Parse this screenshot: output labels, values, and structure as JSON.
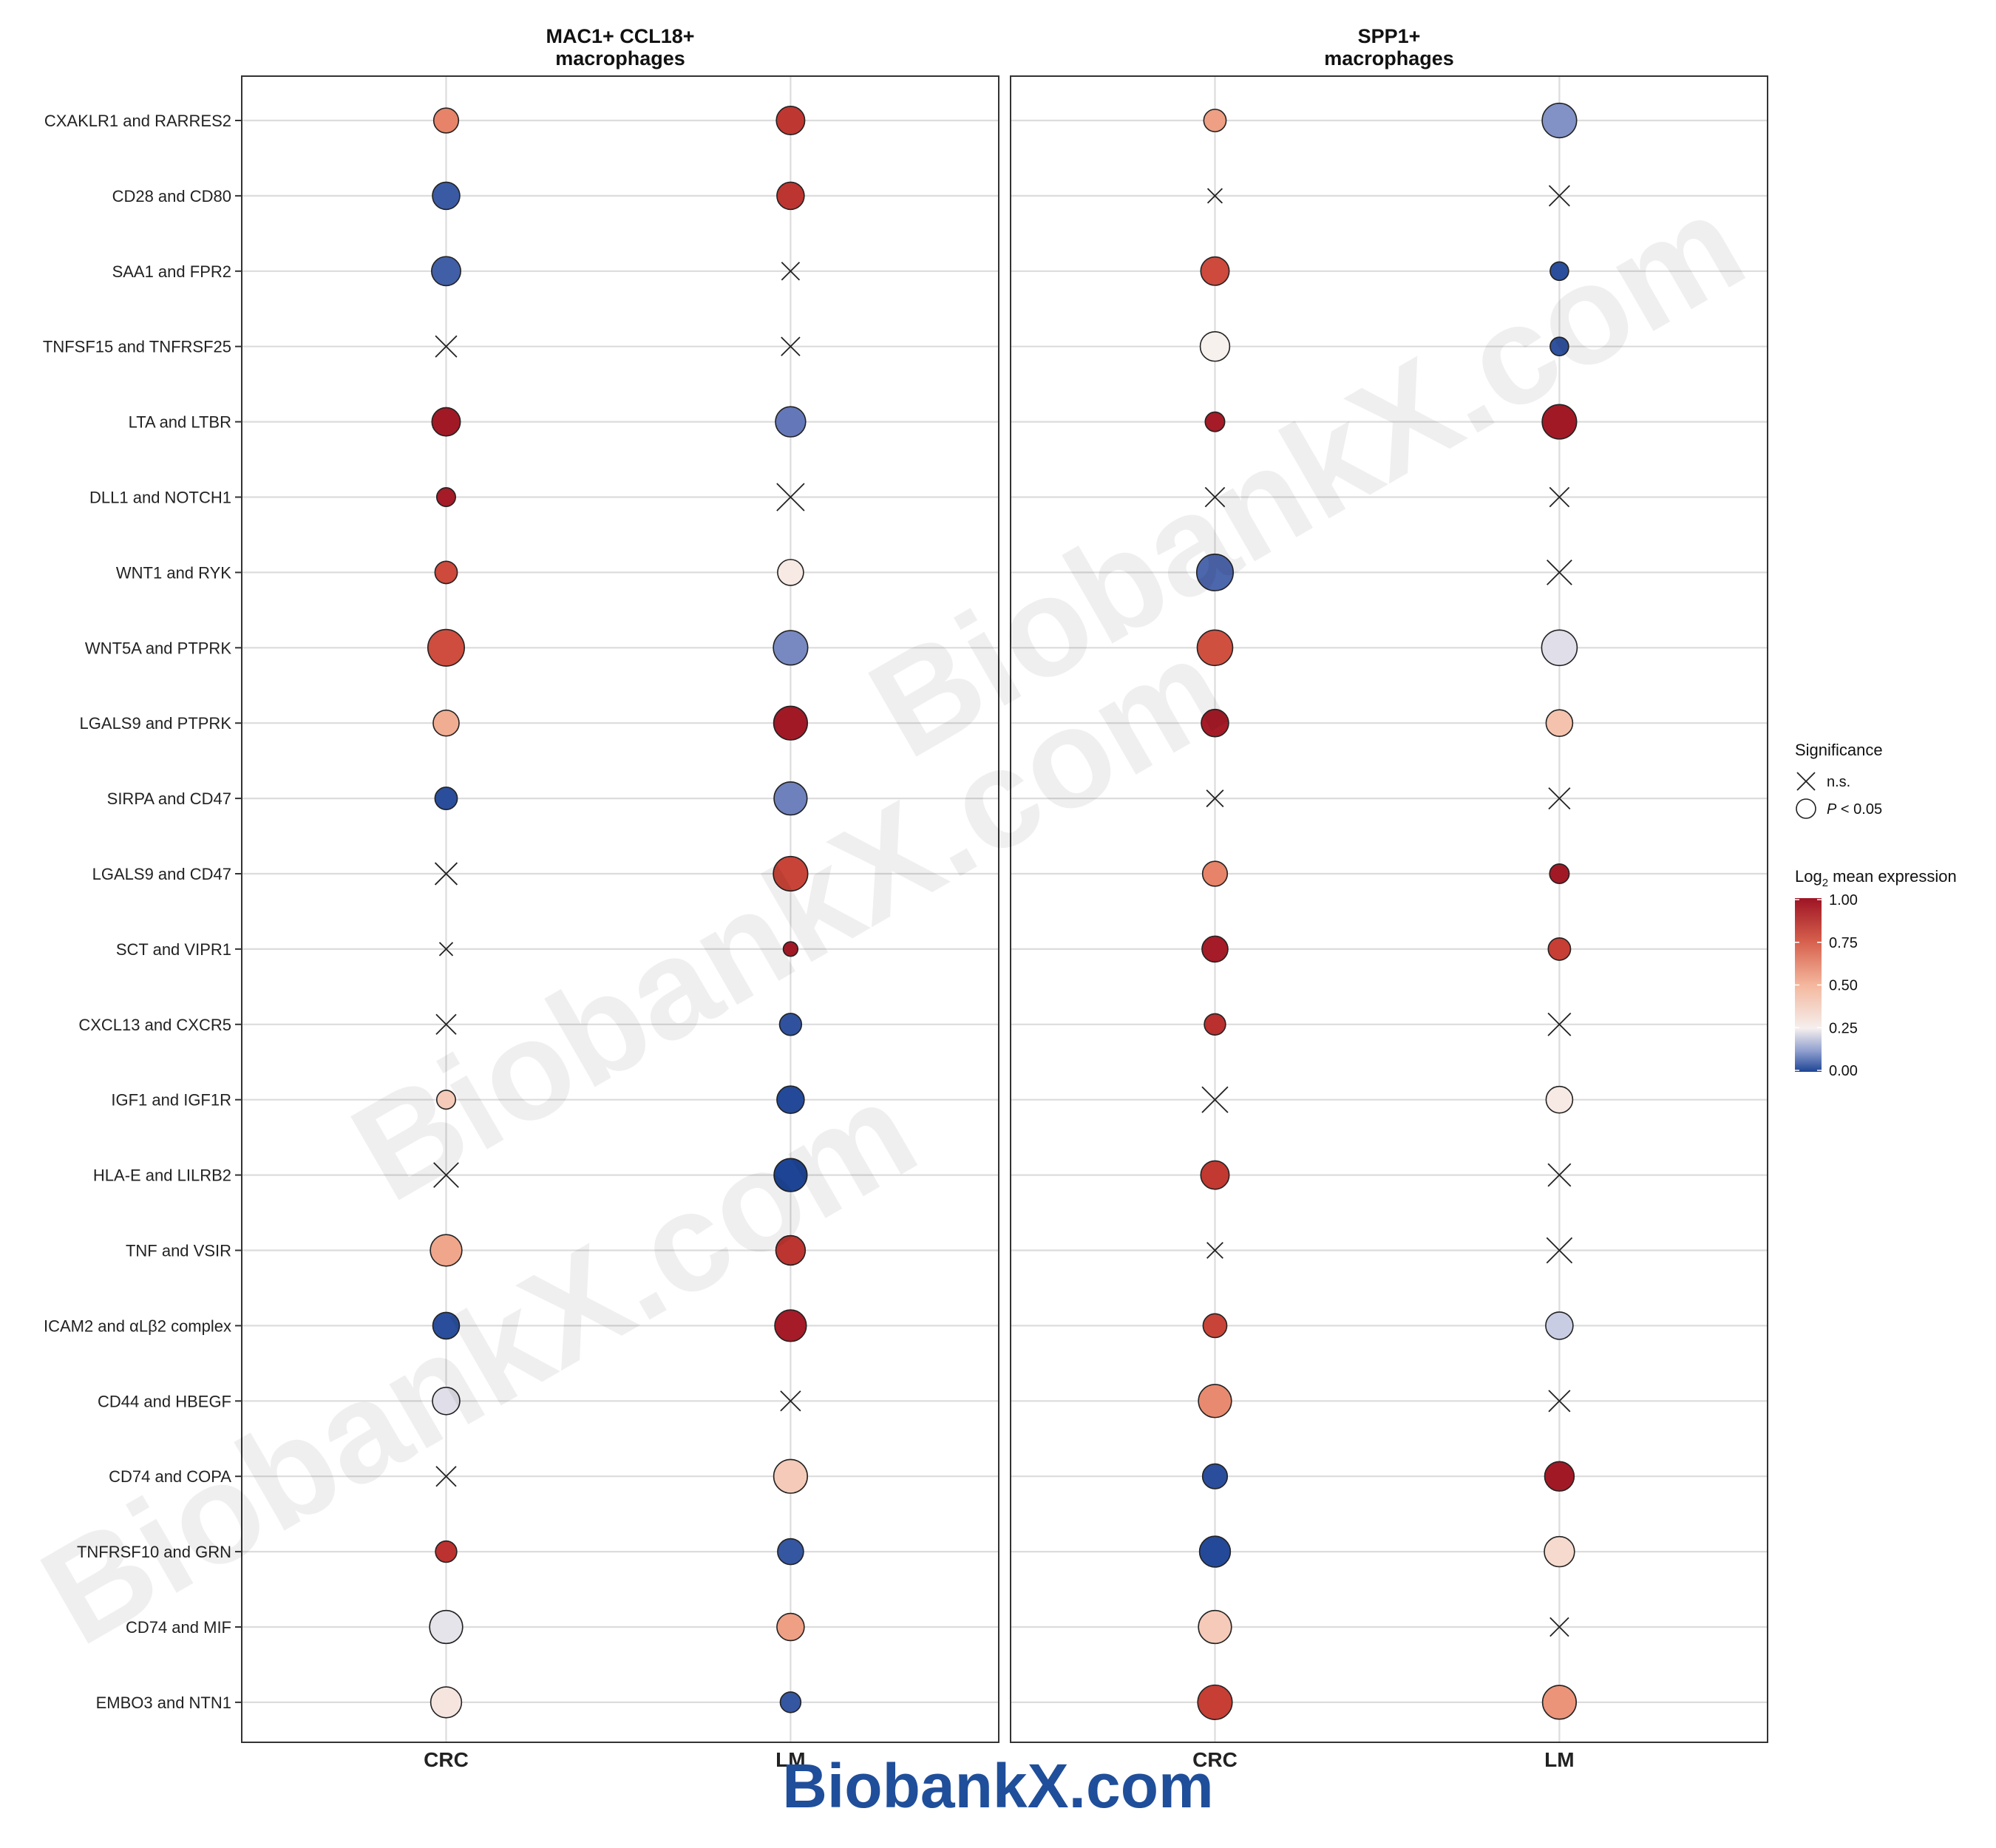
{
  "chart_data": {
    "type": "dotplot",
    "panels": [
      {
        "title_line1": "MAC1+ CCL18+",
        "title_line2": "macrophages"
      },
      {
        "title_line1": "SPP1+",
        "title_line2": "macrophages"
      }
    ],
    "x_categories": [
      "CRC",
      "LM"
    ],
    "rows": [
      "CXAKLR1 and RARRES2",
      "CD28 and CD80",
      "SAA1 and FPR2",
      "TNFSF15 and TNFRSF25",
      "LTA and LTBR",
      "DLL1 and NOTCH1",
      "WNT1 and RYK",
      "WNT5A and PTPRK",
      "LGALS9 and PTPRK",
      "SIRPA and CD47",
      "LGALS9 and CD47",
      "SCT and VIPR1",
      "CXCL13 and CXCR5",
      "IGF1 and IGF1R",
      "HLA-E and LILRB2",
      "TNF and VSIR",
      "ICAM2 and αLβ2 complex",
      "CD44 and HBEGF",
      "CD74 and COPA",
      "TNFRSF10 and GRN",
      "CD74 and MIF",
      "EMBO3 and NTN1"
    ],
    "size_scale_note": "relative marker size 0-1",
    "points": [
      {
        "panel": 0,
        "row": 0,
        "x": "CRC",
        "value": 0.6,
        "size": 0.45,
        "sig": true
      },
      {
        "panel": 0,
        "row": 0,
        "x": "LM",
        "value": 0.85,
        "size": 0.55,
        "sig": true
      },
      {
        "panel": 0,
        "row": 1,
        "x": "CRC",
        "value": 0.05,
        "size": 0.52,
        "sig": true
      },
      {
        "panel": 0,
        "row": 1,
        "x": "LM",
        "value": 0.86,
        "size": 0.52,
        "sig": true
      },
      {
        "panel": 0,
        "row": 2,
        "x": "CRC",
        "value": 0.06,
        "size": 0.57,
        "sig": true
      },
      {
        "panel": 0,
        "row": 2,
        "x": "LM",
        "value": null,
        "size": 0.42,
        "sig": false
      },
      {
        "panel": 0,
        "row": 3,
        "x": "CRC",
        "value": null,
        "size": 0.55,
        "sig": false
      },
      {
        "panel": 0,
        "row": 3,
        "x": "LM",
        "value": null,
        "size": 0.45,
        "sig": false
      },
      {
        "panel": 0,
        "row": 4,
        "x": "CRC",
        "value": 0.98,
        "size": 0.55,
        "sig": true
      },
      {
        "panel": 0,
        "row": 4,
        "x": "LM",
        "value": 0.12,
        "size": 0.6,
        "sig": true
      },
      {
        "panel": 0,
        "row": 5,
        "x": "CRC",
        "value": 0.97,
        "size": 0.28,
        "sig": true
      },
      {
        "panel": 0,
        "row": 5,
        "x": "LM",
        "value": null,
        "size": 0.78,
        "sig": false
      },
      {
        "panel": 0,
        "row": 6,
        "x": "CRC",
        "value": 0.78,
        "size": 0.38,
        "sig": true
      },
      {
        "panel": 0,
        "row": 6,
        "x": "LM",
        "value": 0.32,
        "size": 0.48,
        "sig": true
      },
      {
        "panel": 0,
        "row": 7,
        "x": "CRC",
        "value": 0.77,
        "size": 0.78,
        "sig": true
      },
      {
        "panel": 0,
        "row": 7,
        "x": "LM",
        "value": 0.14,
        "size": 0.72,
        "sig": true
      },
      {
        "panel": 0,
        "row": 8,
        "x": "CRC",
        "value": 0.48,
        "size": 0.48,
        "sig": true
      },
      {
        "panel": 0,
        "row": 8,
        "x": "LM",
        "value": 0.98,
        "size": 0.7,
        "sig": true
      },
      {
        "panel": 0,
        "row": 9,
        "x": "CRC",
        "value": 0.02,
        "size": 0.38,
        "sig": true
      },
      {
        "panel": 0,
        "row": 9,
        "x": "LM",
        "value": 0.13,
        "size": 0.68,
        "sig": true
      },
      {
        "panel": 0,
        "row": 10,
        "x": "CRC",
        "value": null,
        "size": 0.58,
        "sig": false
      },
      {
        "panel": 0,
        "row": 10,
        "x": "LM",
        "value": 0.8,
        "size": 0.72,
        "sig": true
      },
      {
        "panel": 0,
        "row": 11,
        "x": "CRC",
        "value": null,
        "size": 0.25,
        "sig": false
      },
      {
        "panel": 0,
        "row": 11,
        "x": "LM",
        "value": 0.98,
        "size": 0.16,
        "sig": true
      },
      {
        "panel": 0,
        "row": 12,
        "x": "CRC",
        "value": null,
        "size": 0.5,
        "sig": false
      },
      {
        "panel": 0,
        "row": 12,
        "x": "LM",
        "value": 0.03,
        "size": 0.37,
        "sig": true
      },
      {
        "panel": 0,
        "row": 13,
        "x": "CRC",
        "value": 0.4,
        "size": 0.28,
        "sig": true
      },
      {
        "panel": 0,
        "row": 13,
        "x": "LM",
        "value": 0.01,
        "size": 0.52,
        "sig": true
      },
      {
        "panel": 0,
        "row": 14,
        "x": "CRC",
        "value": null,
        "size": 0.68,
        "sig": false
      },
      {
        "panel": 0,
        "row": 14,
        "x": "LM",
        "value": 0.0,
        "size": 0.68,
        "sig": true
      },
      {
        "panel": 0,
        "row": 15,
        "x": "CRC",
        "value": 0.5,
        "size": 0.64,
        "sig": true
      },
      {
        "panel": 0,
        "row": 15,
        "x": "LM",
        "value": 0.86,
        "size": 0.58,
        "sig": true
      },
      {
        "panel": 0,
        "row": 16,
        "x": "CRC",
        "value": 0.02,
        "size": 0.5,
        "sig": true
      },
      {
        "panel": 0,
        "row": 16,
        "x": "LM",
        "value": 0.97,
        "size": 0.64,
        "sig": true
      },
      {
        "panel": 0,
        "row": 17,
        "x": "CRC",
        "value": 0.26,
        "size": 0.52,
        "sig": true
      },
      {
        "panel": 0,
        "row": 17,
        "x": "LM",
        "value": null,
        "size": 0.5,
        "sig": false
      },
      {
        "panel": 0,
        "row": 18,
        "x": "CRC",
        "value": null,
        "size": 0.5,
        "sig": false
      },
      {
        "panel": 0,
        "row": 18,
        "x": "LM",
        "value": 0.4,
        "size": 0.7,
        "sig": true
      },
      {
        "panel": 0,
        "row": 19,
        "x": "CRC",
        "value": 0.87,
        "size": 0.35,
        "sig": true
      },
      {
        "panel": 0,
        "row": 19,
        "x": "LM",
        "value": 0.04,
        "size": 0.48,
        "sig": true
      },
      {
        "panel": 0,
        "row": 20,
        "x": "CRC",
        "value": 0.27,
        "size": 0.68,
        "sig": true
      },
      {
        "panel": 0,
        "row": 20,
        "x": "LM",
        "value": 0.52,
        "size": 0.52,
        "sig": true
      },
      {
        "panel": 0,
        "row": 21,
        "x": "CRC",
        "value": 0.33,
        "size": 0.62,
        "sig": true
      },
      {
        "panel": 0,
        "row": 21,
        "x": "LM",
        "value": 0.04,
        "size": 0.33,
        "sig": true
      },
      {
        "panel": 1,
        "row": 0,
        "x": "CRC",
        "value": 0.52,
        "size": 0.38,
        "sig": true
      },
      {
        "panel": 1,
        "row": 0,
        "x": "LM",
        "value": 0.15,
        "size": 0.72,
        "sig": true
      },
      {
        "panel": 1,
        "row": 1,
        "x": "CRC",
        "value": null,
        "size": 0.3,
        "sig": false
      },
      {
        "panel": 1,
        "row": 1,
        "x": "LM",
        "value": null,
        "size": 0.52,
        "sig": false
      },
      {
        "panel": 1,
        "row": 2,
        "x": "CRC",
        "value": 0.78,
        "size": 0.55,
        "sig": true
      },
      {
        "panel": 1,
        "row": 2,
        "x": "LM",
        "value": 0.02,
        "size": 0.27,
        "sig": true
      },
      {
        "panel": 1,
        "row": 3,
        "x": "CRC",
        "value": 0.3,
        "size": 0.58,
        "sig": true
      },
      {
        "panel": 1,
        "row": 3,
        "x": "LM",
        "value": 0.03,
        "size": 0.27,
        "sig": true
      },
      {
        "panel": 1,
        "row": 4,
        "x": "CRC",
        "value": 0.97,
        "size": 0.3,
        "sig": true
      },
      {
        "panel": 1,
        "row": 4,
        "x": "LM",
        "value": 0.98,
        "size": 0.72,
        "sig": true
      },
      {
        "panel": 1,
        "row": 5,
        "x": "CRC",
        "value": null,
        "size": 0.48,
        "sig": false
      },
      {
        "panel": 1,
        "row": 5,
        "x": "LM",
        "value": null,
        "size": 0.48,
        "sig": false
      },
      {
        "panel": 1,
        "row": 6,
        "x": "CRC",
        "value": 0.08,
        "size": 0.78,
        "sig": true
      },
      {
        "panel": 1,
        "row": 6,
        "x": "LM",
        "value": null,
        "size": 0.68,
        "sig": false
      },
      {
        "panel": 1,
        "row": 7,
        "x": "CRC",
        "value": 0.76,
        "size": 0.75,
        "sig": true
      },
      {
        "panel": 1,
        "row": 7,
        "x": "LM",
        "value": 0.26,
        "size": 0.75,
        "sig": true
      },
      {
        "panel": 1,
        "row": 8,
        "x": "CRC",
        "value": 0.97,
        "size": 0.52,
        "sig": true
      },
      {
        "panel": 1,
        "row": 8,
        "x": "LM",
        "value": 0.42,
        "size": 0.5,
        "sig": true
      },
      {
        "panel": 1,
        "row": 9,
        "x": "CRC",
        "value": null,
        "size": 0.38,
        "sig": false
      },
      {
        "panel": 1,
        "row": 9,
        "x": "LM",
        "value": null,
        "size": 0.55,
        "sig": false
      },
      {
        "panel": 1,
        "row": 10,
        "x": "CRC",
        "value": 0.6,
        "size": 0.45,
        "sig": true
      },
      {
        "panel": 1,
        "row": 10,
        "x": "LM",
        "value": 0.98,
        "size": 0.3,
        "sig": true
      },
      {
        "panel": 1,
        "row": 11,
        "x": "CRC",
        "value": 0.97,
        "size": 0.48,
        "sig": true
      },
      {
        "panel": 1,
        "row": 11,
        "x": "LM",
        "value": 0.82,
        "size": 0.38,
        "sig": true
      },
      {
        "panel": 1,
        "row": 12,
        "x": "CRC",
        "value": 0.88,
        "size": 0.35,
        "sig": true
      },
      {
        "panel": 1,
        "row": 12,
        "x": "LM",
        "value": null,
        "size": 0.6,
        "sig": false
      },
      {
        "panel": 1,
        "row": 13,
        "x": "CRC",
        "value": null,
        "size": 0.72,
        "sig": false
      },
      {
        "panel": 1,
        "row": 13,
        "x": "LM",
        "value": 0.32,
        "size": 0.5,
        "sig": true
      },
      {
        "panel": 1,
        "row": 14,
        "x": "CRC",
        "value": 0.84,
        "size": 0.55,
        "sig": true
      },
      {
        "panel": 1,
        "row": 14,
        "x": "LM",
        "value": null,
        "size": 0.6,
        "sig": false
      },
      {
        "panel": 1,
        "row": 15,
        "x": "CRC",
        "value": null,
        "size": 0.35,
        "sig": false
      },
      {
        "panel": 1,
        "row": 15,
        "x": "LM",
        "value": null,
        "size": 0.7,
        "sig": false
      },
      {
        "panel": 1,
        "row": 16,
        "x": "CRC",
        "value": 0.8,
        "size": 0.42,
        "sig": true
      },
      {
        "panel": 1,
        "row": 16,
        "x": "LM",
        "value": 0.22,
        "size": 0.52,
        "sig": true
      },
      {
        "panel": 1,
        "row": 17,
        "x": "CRC",
        "value": 0.58,
        "size": 0.68,
        "sig": true
      },
      {
        "panel": 1,
        "row": 17,
        "x": "LM",
        "value": null,
        "size": 0.55,
        "sig": false
      },
      {
        "panel": 1,
        "row": 18,
        "x": "CRC",
        "value": 0.02,
        "size": 0.45,
        "sig": true
      },
      {
        "panel": 1,
        "row": 18,
        "x": "LM",
        "value": 0.98,
        "size": 0.58,
        "sig": true
      },
      {
        "panel": 1,
        "row": 19,
        "x": "CRC",
        "value": 0.01,
        "size": 0.62,
        "sig": true
      },
      {
        "panel": 1,
        "row": 19,
        "x": "LM",
        "value": 0.36,
        "size": 0.6,
        "sig": true
      },
      {
        "panel": 1,
        "row": 20,
        "x": "CRC",
        "value": 0.4,
        "size": 0.68,
        "sig": true
      },
      {
        "panel": 1,
        "row": 20,
        "x": "LM",
        "value": null,
        "size": 0.45,
        "sig": false
      },
      {
        "panel": 1,
        "row": 21,
        "x": "CRC",
        "value": 0.82,
        "size": 0.72,
        "sig": true
      },
      {
        "panel": 1,
        "row": 21,
        "x": "LM",
        "value": 0.55,
        "size": 0.7,
        "sig": true
      }
    ],
    "legend": {
      "significance_title": "Significance",
      "ns_label": "n.s.",
      "p_label_italic": "P",
      "p_label_rest": " < 0.05",
      "color_title_prefix": "Log",
      "color_title_sub": "2",
      "color_title_suffix": " mean expression",
      "color_ticks": [
        "1.00",
        "0.75",
        "0.50",
        "0.25",
        "0.00"
      ],
      "color_stops": [
        "#67001f",
        "#b2182b",
        "#d6604d",
        "#f4a582",
        "#fddbc7",
        "#f7f7f7",
        "#d1e5f0",
        "#92c5de",
        "#4393c3",
        "#2166ac",
        "#053061"
      ]
    },
    "colors": {
      "low": "#1e4595",
      "mid_low": "#9eaad2",
      "mid": "#f7f1ee",
      "mid_high": "#f0a585",
      "high": "#9e1424"
    }
  },
  "watermark": "BiobankX.com",
  "footer": "BiobankX.com"
}
